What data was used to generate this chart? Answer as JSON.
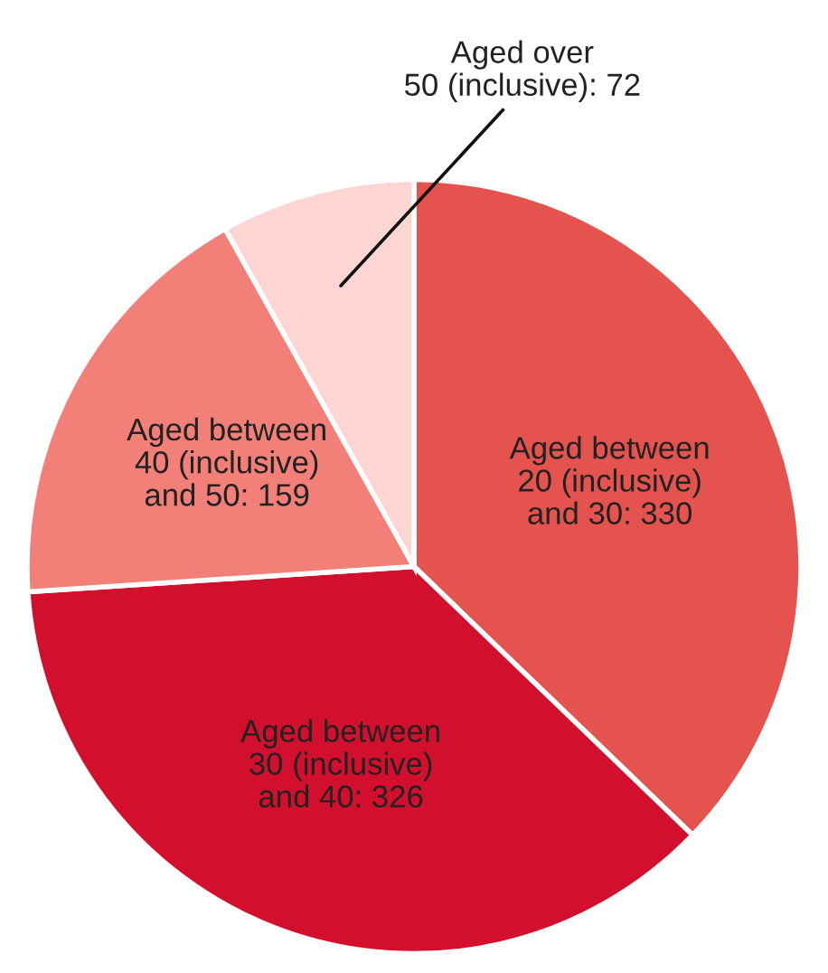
{
  "chart_data": {
    "type": "pie",
    "categories": [
      "Aged between\n20 (inclusive)\nand 30: 330",
      "Aged between\n30 (inclusive)\nand 40: 326",
      "Aged between\n40 (inclusive)\nand 50: 159",
      "Aged over\n50 (inclusive): 72"
    ],
    "values": [
      330,
      326,
      159,
      72
    ],
    "colors": [
      "#e5534f",
      "#d20f2c",
      "#f28079",
      "#fdd5d3"
    ]
  }
}
